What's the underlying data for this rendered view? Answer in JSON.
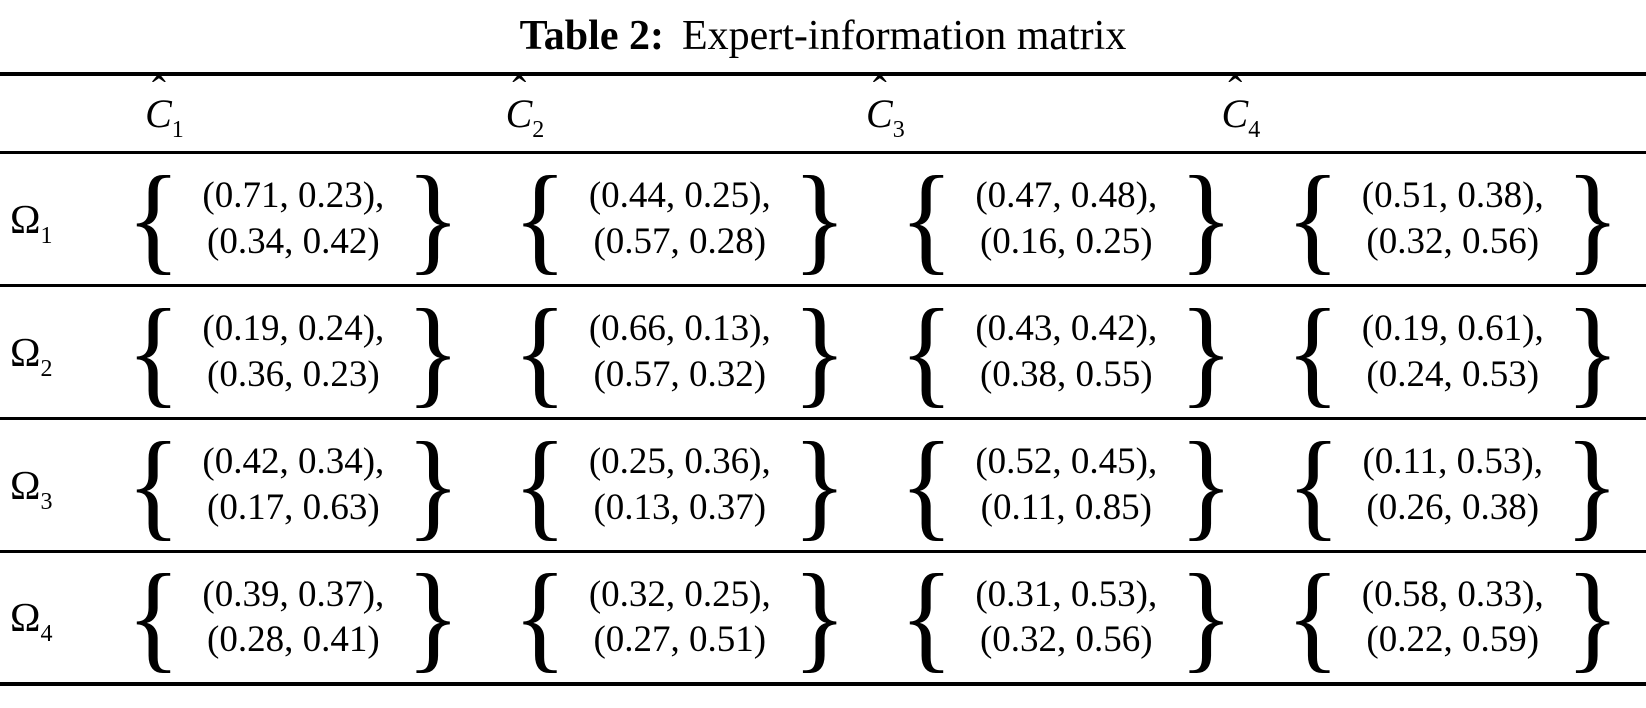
{
  "title": {
    "label": "Table 2:",
    "text": "Expert-information matrix"
  },
  "notation": {
    "open_brace": "{",
    "close_brace": "}",
    "hat": "ˆ"
  },
  "table": {
    "columns": [
      {
        "base": "C",
        "sub": "1"
      },
      {
        "base": "C",
        "sub": "2"
      },
      {
        "base": "C",
        "sub": "3"
      },
      {
        "base": "C",
        "sub": "4"
      }
    ],
    "rows": [
      {
        "label": {
          "base": "Ω",
          "sub": "1"
        },
        "cells": [
          {
            "lines": [
              "(0.71, 0.23),",
              "(0.34, 0.42)"
            ]
          },
          {
            "lines": [
              "(0.44, 0.25),",
              "(0.57, 0.28)"
            ]
          },
          {
            "lines": [
              "(0.47, 0.48),",
              "(0.16, 0.25)"
            ]
          },
          {
            "lines": [
              "(0.51, 0.38),",
              "(0.32, 0.56)"
            ]
          }
        ]
      },
      {
        "label": {
          "base": "Ω",
          "sub": "2"
        },
        "cells": [
          {
            "lines": [
              "(0.19, 0.24),",
              "(0.36, 0.23)"
            ]
          },
          {
            "lines": [
              "(0.66, 0.13),",
              "(0.57, 0.32)"
            ]
          },
          {
            "lines": [
              "(0.43, 0.42),",
              "(0.38, 0.55)"
            ]
          },
          {
            "lines": [
              "(0.19, 0.61),",
              "(0.24, 0.53)"
            ]
          }
        ]
      },
      {
        "label": {
          "base": "Ω",
          "sub": "3"
        },
        "cells": [
          {
            "lines": [
              "(0.42, 0.34),",
              "(0.17, 0.63)"
            ]
          },
          {
            "lines": [
              "(0.25, 0.36),",
              "(0.13, 0.37)"
            ]
          },
          {
            "lines": [
              "(0.52, 0.45),",
              "(0.11, 0.85)"
            ]
          },
          {
            "lines": [
              "(0.11, 0.53),",
              "(0.26, 0.38)"
            ]
          }
        ]
      },
      {
        "label": {
          "base": "Ω",
          "sub": "4"
        },
        "cells": [
          {
            "lines": [
              "(0.39, 0.37),",
              "(0.28, 0.41)"
            ]
          },
          {
            "lines": [
              "(0.32, 0.25),",
              "(0.27, 0.51)"
            ]
          },
          {
            "lines": [
              "(0.31, 0.53),",
              "(0.32, 0.56)"
            ]
          },
          {
            "lines": [
              "(0.58, 0.33),",
              "(0.22, 0.59)"
            ]
          }
        ]
      }
    ]
  }
}
